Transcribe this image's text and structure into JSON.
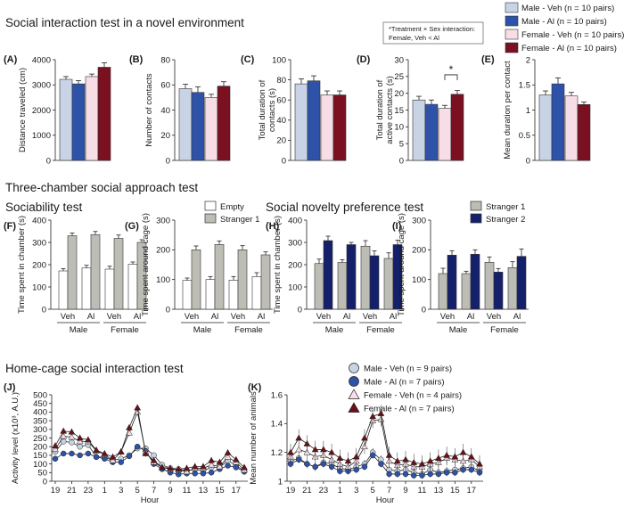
{
  "sections": {
    "s1": "Social interaction test in a novel environment",
    "s2": "Three-chamber social approach test",
    "s2a": "Sociability test",
    "s2b": "Social novelty preference test",
    "s3": "Home-cage social interaction test"
  },
  "annotation": {
    "line1": "*Treatment × Sex interaction:",
    "line2": "Female, Veh < Al"
  },
  "significance": "*",
  "legend_top": [
    {
      "label": "Male - Veh (n = 10 pairs)",
      "color": "#c9d3e6"
    },
    {
      "label": "Male - Al (n = 10 pairs)",
      "color": "#2d52a8"
    },
    {
      "label": "Female - Veh (n = 10 pairs)",
      "color": "#f7dde6"
    },
    {
      "label": "Female - Al (n = 10 pairs)",
      "color": "#7a1020"
    }
  ],
  "legend_soc": [
    {
      "label": "Empty",
      "color": "#ffffff"
    },
    {
      "label": "Stranger 1",
      "color": "#bdbdb6"
    }
  ],
  "legend_nov": [
    {
      "label": "Stranger 1",
      "color": "#bdbdb6"
    },
    {
      "label": "Stranger 2",
      "color": "#14206a"
    }
  ],
  "legend_home": [
    {
      "label": "Male - Veh (n = 9 pairs)",
      "marker": "circle",
      "color": "#c9d3e6"
    },
    {
      "label": "Male - Al (n = 7 pairs)",
      "marker": "circle",
      "color": "#2d52a8"
    },
    {
      "label": "Female - Veh (n = 4 pairs)",
      "marker": "triangle",
      "color": "#f7dde6"
    },
    {
      "label": "Female - Al (n = 7 pairs)",
      "marker": "triangle",
      "color": "#6b1018"
    }
  ],
  "chart_data": [
    {
      "panel": "(A)",
      "type": "bar",
      "ylabel": "Distance traveled (cm)",
      "ylim": [
        0,
        4000
      ],
      "yticks": [
        0,
        1000,
        2000,
        3000,
        4000
      ],
      "groups": [
        "Male - Veh",
        "Male - Al",
        "Female - Veh",
        "Female - Al"
      ],
      "values": [
        3220,
        3040,
        3330,
        3700
      ],
      "errors": [
        110,
        130,
        100,
        180
      ]
    },
    {
      "panel": "(B)",
      "type": "bar",
      "ylabel": "Number of contacts",
      "ylim": [
        0,
        80
      ],
      "yticks": [
        0,
        20,
        40,
        60,
        80
      ],
      "groups": [
        "Male - Veh",
        "Male - Al",
        "Female - Veh",
        "Female - Al"
      ],
      "values": [
        57,
        54,
        50,
        59
      ],
      "errors": [
        3.5,
        4.5,
        2.5,
        3.5
      ]
    },
    {
      "panel": "(C)",
      "type": "bar",
      "ylabel": "Total duration of contacts (s)",
      "ylim": [
        0,
        100
      ],
      "yticks": [
        0,
        20,
        40,
        60,
        80,
        100
      ],
      "groups": [
        "Male - Veh",
        "Male - Al",
        "Female - Veh",
        "Female - Al"
      ],
      "values": [
        76,
        79,
        65,
        65
      ],
      "errors": [
        5,
        5,
        4,
        4
      ]
    },
    {
      "panel": "(D)",
      "type": "bar",
      "ylabel": "Total duration of active contacts (s)",
      "ylim": [
        0,
        30
      ],
      "yticks": [
        0,
        5,
        10,
        15,
        20,
        25,
        30
      ],
      "groups": [
        "Male - Veh",
        "Male - Al",
        "Female - Veh",
        "Female - Al"
      ],
      "values": [
        18,
        16.7,
        15.5,
        19.7
      ],
      "errors": [
        1.1,
        1.3,
        0.9,
        1.1
      ]
    },
    {
      "panel": "(E)",
      "type": "bar",
      "ylabel": "Mean duration per contact",
      "ylim": [
        0,
        2
      ],
      "yticks": [
        0,
        0.5,
        1,
        1.5,
        2
      ],
      "groups": [
        "Male - Veh",
        "Male - Al",
        "Female - Veh",
        "Female - Al"
      ],
      "values": [
        1.3,
        1.52,
        1.28,
        1.11
      ],
      "errors": [
        0.08,
        0.12,
        0.07,
        0.05
      ]
    },
    {
      "panel": "(F)",
      "type": "bar",
      "ylabel": "Time spent in chamber (s)",
      "ylim": [
        0,
        400
      ],
      "yticks": [
        0,
        100,
        200,
        300,
        400
      ],
      "categories": [
        "Veh",
        "Al",
        "Veh",
        "Al"
      ],
      "sex": [
        "Male",
        "Female"
      ],
      "series": [
        {
          "name": "Empty",
          "values": [
            172,
            185,
            180,
            202
          ],
          "errors": [
            10,
            12,
            13,
            10
          ]
        },
        {
          "name": "Stranger 1",
          "values": [
            330,
            335,
            318,
            300
          ],
          "errors": [
            12,
            14,
            15,
            12
          ]
        }
      ]
    },
    {
      "panel": "(G)",
      "type": "bar",
      "ylabel": "Time spent around cage (s)",
      "ylim": [
        0,
        300
      ],
      "yticks": [
        0,
        100,
        200,
        300
      ],
      "categories": [
        "Veh",
        "Al",
        "Veh",
        "Al"
      ],
      "sex": [
        "Male",
        "Female"
      ],
      "series": [
        {
          "name": "Empty",
          "values": [
            97,
            100,
            98,
            110
          ],
          "errors": [
            8,
            10,
            12,
            13
          ]
        },
        {
          "name": "Stranger 1",
          "values": [
            200,
            218,
            200,
            183
          ],
          "errors": [
            13,
            12,
            14,
            10
          ]
        }
      ]
    },
    {
      "panel": "(H)",
      "type": "bar",
      "ylabel": "Time spent in chamber (s)",
      "ylim": [
        0,
        400
      ],
      "yticks": [
        0,
        100,
        200,
        300,
        400
      ],
      "categories": [
        "Veh",
        "Al",
        "Veh",
        "Al"
      ],
      "sex": [
        "Male",
        "Female"
      ],
      "series": [
        {
          "name": "Stranger 1",
          "values": [
            205,
            210,
            283,
            228
          ],
          "errors": [
            20,
            12,
            25,
            25
          ]
        },
        {
          "name": "Stranger 2",
          "values": [
            308,
            290,
            240,
            290
          ],
          "errors": [
            20,
            10,
            22,
            20
          ]
        }
      ]
    },
    {
      "panel": "(I)",
      "type": "bar",
      "ylabel": "Time spent around cage (s)",
      "ylim": [
        0,
        300
      ],
      "yticks": [
        0,
        100,
        200,
        300
      ],
      "categories": [
        "Veh",
        "Al",
        "Veh",
        "Al"
      ],
      "sex": [
        "Male",
        "Female"
      ],
      "series": [
        {
          "name": "Stranger 1",
          "values": [
            120,
            120,
            158,
            140
          ],
          "errors": [
            18,
            8,
            18,
            20
          ]
        },
        {
          "name": "Stranger 2",
          "values": [
            182,
            185,
            125,
            178
          ],
          "errors": [
            15,
            15,
            12,
            25
          ]
        }
      ]
    },
    {
      "panel": "(J)",
      "type": "line",
      "xlabel": "Hour",
      "ylabel": "Activity level (x10³, A.U.)",
      "ylim": [
        0,
        500
      ],
      "yticks": [
        0,
        50,
        100,
        150,
        200,
        250,
        300,
        350,
        400,
        450,
        500
      ],
      "xtick_labels": [
        "19",
        "21",
        "23",
        "1",
        "3",
        "5",
        "7",
        "9",
        "11",
        "13",
        "15",
        "17"
      ],
      "hours": [
        19,
        20,
        21,
        22,
        23,
        0,
        1,
        2,
        3,
        4,
        5,
        6,
        7,
        8,
        9,
        10,
        11,
        12,
        13,
        14,
        15,
        16,
        17,
        18
      ],
      "series": [
        {
          "name": "Male - Veh",
          "values": [
            170,
            230,
            225,
            200,
            210,
            140,
            140,
            120,
            130,
            150,
            190,
            190,
            150,
            95,
            75,
            70,
            60,
            70,
            60,
            80,
            80,
            120,
            90,
            60
          ],
          "error": 15
        },
        {
          "name": "Male - Al",
          "values": [
            130,
            160,
            160,
            150,
            160,
            140,
            130,
            110,
            110,
            145,
            200,
            175,
            100,
            70,
            50,
            40,
            45,
            45,
            45,
            50,
            70,
            90,
            80,
            55
          ],
          "error": 12
        },
        {
          "name": "Female - Veh",
          "values": [
            185,
            260,
            255,
            230,
            230,
            175,
            155,
            120,
            170,
            280,
            400,
            170,
            110,
            80,
            70,
            65,
            55,
            75,
            75,
            95,
            85,
            140,
            110,
            65
          ],
          "error": 20
        },
        {
          "name": "Female - Al",
          "values": [
            205,
            290,
            285,
            250,
            240,
            180,
            160,
            140,
            170,
            310,
            425,
            160,
            120,
            80,
            75,
            70,
            75,
            85,
            85,
            120,
            110,
            165,
            125,
            80
          ],
          "error": 20
        }
      ]
    },
    {
      "panel": "(K)",
      "type": "line",
      "xlabel": "Hour",
      "ylabel": "Mean number of animals",
      "ylim": [
        1,
        1.6
      ],
      "yticks": [
        1,
        1.2,
        1.4,
        1.6
      ],
      "xtick_labels": [
        "19",
        "21",
        "23",
        "1",
        "3",
        "5",
        "7",
        "9",
        "11",
        "13",
        "15",
        "17"
      ],
      "hours": [
        19,
        20,
        21,
        22,
        23,
        0,
        1,
        2,
        3,
        4,
        5,
        6,
        7,
        8,
        9,
        10,
        11,
        12,
        13,
        14,
        15,
        16,
        17,
        18
      ],
      "series": [
        {
          "name": "Male - Veh",
          "values": [
            1.14,
            1.16,
            1.12,
            1.1,
            1.13,
            1.12,
            1.09,
            1.08,
            1.1,
            1.12,
            1.2,
            1.15,
            1.08,
            1.07,
            1.08,
            1.06,
            1.05,
            1.08,
            1.06,
            1.07,
            1.08,
            1.09,
            1.1,
            1.07
          ],
          "error": 0.03
        },
        {
          "name": "Male - Al",
          "values": [
            1.12,
            1.15,
            1.12,
            1.1,
            1.12,
            1.1,
            1.07,
            1.07,
            1.08,
            1.1,
            1.18,
            1.12,
            1.05,
            1.05,
            1.05,
            1.04,
            1.04,
            1.05,
            1.05,
            1.06,
            1.06,
            1.08,
            1.08,
            1.06
          ],
          "error": 0.025
        },
        {
          "name": "Female - Veh",
          "values": [
            1.17,
            1.22,
            1.2,
            1.17,
            1.18,
            1.15,
            1.12,
            1.1,
            1.14,
            1.24,
            1.42,
            1.43,
            1.14,
            1.11,
            1.12,
            1.1,
            1.1,
            1.12,
            1.13,
            1.16,
            1.15,
            1.14,
            1.15,
            1.1
          ],
          "error": 0.05
        },
        {
          "name": "Female - Al",
          "values": [
            1.2,
            1.3,
            1.26,
            1.22,
            1.22,
            1.2,
            1.16,
            1.14,
            1.17,
            1.3,
            1.45,
            1.47,
            1.18,
            1.14,
            1.15,
            1.13,
            1.12,
            1.14,
            1.16,
            1.18,
            1.17,
            1.2,
            1.17,
            1.12
          ],
          "error": 0.06
        }
      ]
    }
  ]
}
